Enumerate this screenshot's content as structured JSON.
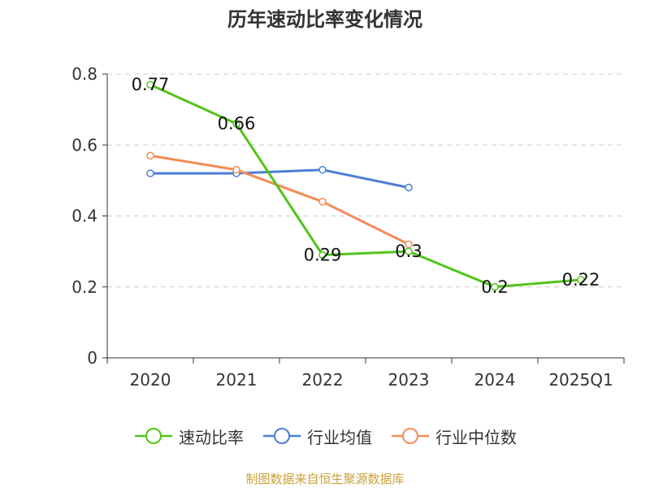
{
  "title": "历年速动比率变化情况",
  "source": "制图数据来自恒生聚源数据库",
  "colors": {
    "series": [
      "#52c41a",
      "#4a7fd6",
      "#f28c55"
    ],
    "axis": "#333333",
    "grid": "#cccccc"
  },
  "chart_data": {
    "type": "line",
    "title": "历年速动比率变化情况",
    "xlabel": "",
    "ylabel": "",
    "categories": [
      "2020",
      "2021",
      "2022",
      "2023",
      "2024",
      "2025Q1"
    ],
    "ylim": [
      0,
      0.8
    ],
    "yticks": [
      "0",
      "0.2",
      "0.4",
      "0.6",
      "0.8"
    ],
    "grid": true,
    "legend_position": "bottom",
    "series": [
      {
        "name": "速动比率",
        "values": [
          0.77,
          0.66,
          0.29,
          0.3,
          0.2,
          0.22
        ],
        "labels": [
          "0.77",
          "0.66",
          "0.29",
          "0.3",
          "0.2",
          "0.22"
        ]
      },
      {
        "name": "行业均值",
        "values": [
          0.52,
          0.52,
          0.53,
          0.48,
          null,
          null
        ]
      },
      {
        "name": "行业中位数",
        "values": [
          0.57,
          0.53,
          0.44,
          0.32,
          null,
          null
        ]
      }
    ]
  }
}
